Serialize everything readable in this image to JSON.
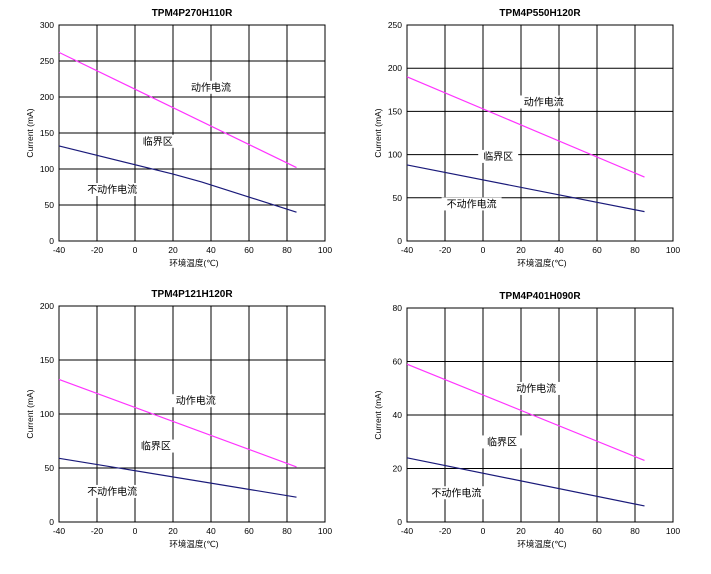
{
  "chart_data": [
    {
      "type": "line",
      "title": "TPM4P270H110R",
      "xlabel": "环境温度(℃)",
      "ylabel": "Current (mA)",
      "xlim": [
        -40,
        100
      ],
      "ylim": [
        0,
        300
      ],
      "x_ticks": [
        -40,
        -20,
        0,
        20,
        40,
        60,
        80,
        100
      ],
      "y_ticks": [
        0,
        50,
        100,
        150,
        200,
        250,
        300
      ],
      "series": [
        {
          "name": "upper",
          "color": "#ff33ff",
          "x": [
            -40,
            85
          ],
          "y": [
            262,
            102
          ]
        },
        {
          "name": "lower",
          "color": "#1a1a7a",
          "x": [
            -40,
            20,
            35,
            85
          ],
          "y": [
            132,
            93,
            82,
            40
          ]
        }
      ],
      "annotations": [
        {
          "text": "动作电流",
          "x": 40,
          "y": 210
        },
        {
          "text": "临界区",
          "x": 12,
          "y": 135
        },
        {
          "text": "不动作电流",
          "x": -12,
          "y": 68
        }
      ]
    },
    {
      "type": "line",
      "title": "TPM4P550H120R",
      "xlabel": "环境温度(℃)",
      "ylabel": "Current (mA)",
      "xlim": [
        -40,
        100
      ],
      "ylim": [
        0,
        250
      ],
      "x_ticks": [
        -40,
        -20,
        0,
        20,
        40,
        60,
        80,
        100
      ],
      "y_ticks": [
        0,
        50,
        100,
        150,
        200,
        250
      ],
      "series": [
        {
          "name": "upper",
          "color": "#ff33ff",
          "x": [
            -40,
            85
          ],
          "y": [
            190,
            74
          ]
        },
        {
          "name": "lower",
          "color": "#1a1a7a",
          "x": [
            -40,
            85
          ],
          "y": [
            88,
            34
          ]
        }
      ],
      "annotations": [
        {
          "text": "动作电流",
          "x": 32,
          "y": 158
        },
        {
          "text": "临界区",
          "x": 8,
          "y": 95
        },
        {
          "text": "不动作电流",
          "x": -6,
          "y": 40
        }
      ]
    },
    {
      "type": "line",
      "title": "TPM4P121H120R",
      "xlabel": "环境温度(℃)",
      "ylabel": "Current (mA)",
      "xlim": [
        -40,
        100
      ],
      "ylim": [
        0,
        200
      ],
      "x_ticks": [
        -40,
        -20,
        0,
        20,
        40,
        60,
        80,
        100
      ],
      "y_ticks": [
        0,
        50,
        100,
        150,
        200
      ],
      "series": [
        {
          "name": "upper",
          "color": "#ff33ff",
          "x": [
            -40,
            85
          ],
          "y": [
            132,
            51
          ]
        },
        {
          "name": "lower",
          "color": "#1a1a7a",
          "x": [
            -40,
            85
          ],
          "y": [
            59,
            23
          ]
        }
      ],
      "annotations": [
        {
          "text": "动作电流",
          "x": 32,
          "y": 110
        },
        {
          "text": "临界区",
          "x": 11,
          "y": 68
        },
        {
          "text": "不动作电流",
          "x": -12,
          "y": 26
        }
      ]
    },
    {
      "type": "line",
      "title": "TPM4P401H090R",
      "xlabel": "环境温度(℃)",
      "ylabel": "Current (mA)",
      "xlim": [
        -40,
        100
      ],
      "ylim": [
        0,
        80
      ],
      "x_ticks": [
        -40,
        -20,
        0,
        20,
        40,
        60,
        80,
        100
      ],
      "y_ticks": [
        0,
        20,
        40,
        60,
        80
      ],
      "series": [
        {
          "name": "upper",
          "color": "#ff33ff",
          "x": [
            -40,
            85
          ],
          "y": [
            59,
            23
          ]
        },
        {
          "name": "lower",
          "color": "#1a1a7a",
          "x": [
            -40,
            85
          ],
          "y": [
            24,
            6
          ]
        }
      ],
      "annotations": [
        {
          "text": "动作电流",
          "x": 28,
          "y": 49
        },
        {
          "text": "临界区",
          "x": 10,
          "y": 29
        },
        {
          "text": "不动作电流",
          "x": -14,
          "y": 10
        }
      ]
    }
  ]
}
